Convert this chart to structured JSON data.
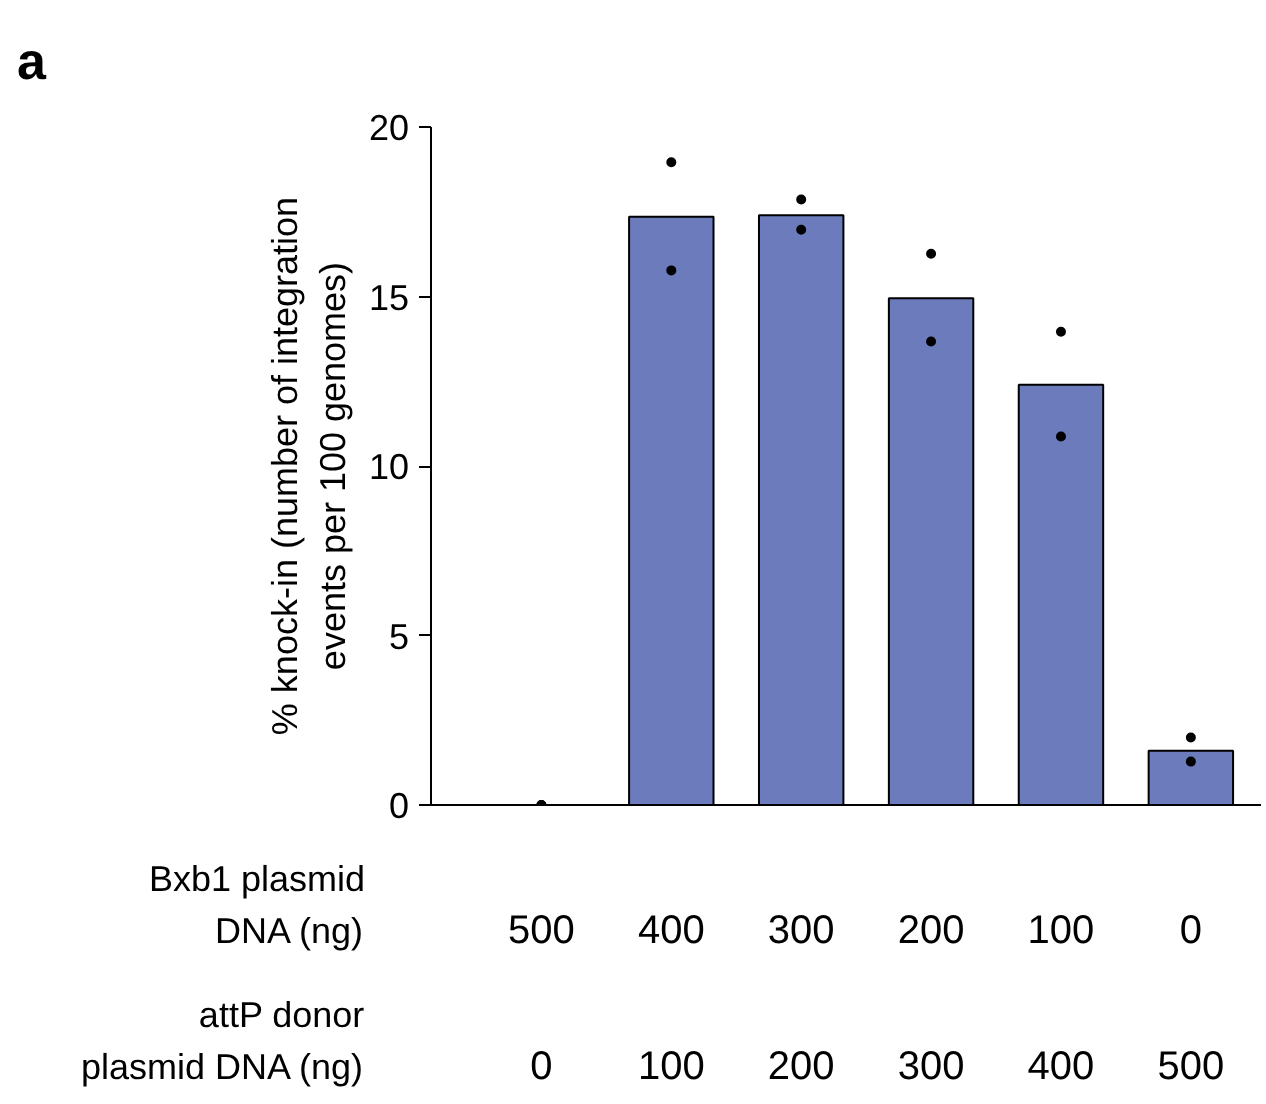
{
  "chart_data": {
    "type": "bar",
    "ylabel": "% knock-in (number of integration\nevents per 100 genomes)",
    "annotations": [
      "a",
      "Bxb1 plasmid\nDNA (ng)",
      "attP donor\nplasmid DNA (ng)"
    ],
    "categories": [
      "500\n0",
      "400\n100",
      "300\n200",
      "200\n300",
      "100\n400",
      "0\n500"
    ],
    "series": [
      {
        "color": "#6b7bbb",
        "values": [
          0,
          17.35,
          17.4,
          14.95,
          12.4,
          1.6
        ]
      },
      {
        "type": "scatter",
        "color": "#000000",
        "marker": "circle",
        "values": [
          0,
          18.96,
          17.86,
          16.26,
          13.96,
          1.99
        ]
      },
      {
        "type": "scatter",
        "color": "#000000",
        "marker": "circle",
        "values": [
          0,
          15.77,
          16.97,
          13.67,
          10.87,
          1.28
        ]
      }
    ],
    "ylim": [
      0,
      20
    ],
    "yticks": [
      0,
      5,
      10,
      15,
      20
    ],
    "grid": false
  }
}
